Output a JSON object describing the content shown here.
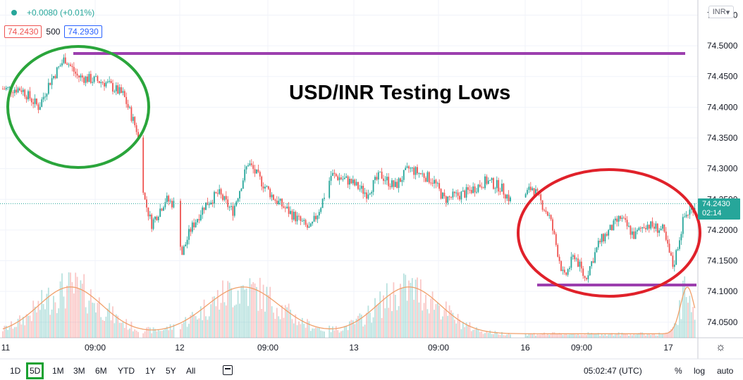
{
  "legend": {
    "change": "+0.0080 (+0.01%)"
  },
  "quote": {
    "bid": "74.2430",
    "qty": "500",
    "ask": "74.2930"
  },
  "currency": "INR",
  "title": "USD/INR Testing Lows",
  "last_price": {
    "price": "74.2430",
    "countdown": "02:14"
  },
  "ranges": [
    "1D",
    "5D",
    "1M",
    "3M",
    "6M",
    "YTD",
    "1Y",
    "5Y",
    "All"
  ],
  "active_range": "5D",
  "clock": "05:02:47 (UTC)",
  "scale_options": {
    "percent": "%",
    "log": "log",
    "auto": "auto"
  },
  "colors": {
    "up": "#26a69a",
    "down": "#ef5350",
    "resistance": "#9c3fae",
    "green_circle": "#2aa53b",
    "red_circle": "#e0212a",
    "volume_ma": "#f0a06a"
  },
  "chart_data": {
    "type": "candlestick",
    "symbol": "USD/INR",
    "ylim": [
      74.02,
      74.57
    ],
    "y_ticks": [
      "74.5500",
      "74.5000",
      "74.4500",
      "74.4000",
      "74.3500",
      "74.3000",
      "74.2500",
      "74.2000",
      "74.1500",
      "74.1000",
      "74.0500"
    ],
    "x_ticks": [
      "11",
      "09:00",
      "12",
      "09:00",
      "13",
      "09:00",
      "16",
      "09:00",
      "17"
    ],
    "price_path": [
      [
        0,
        74.43
      ],
      [
        30,
        74.43
      ],
      [
        55,
        74.4
      ],
      [
        70,
        74.44
      ],
      [
        92,
        74.48
      ],
      [
        110,
        74.45
      ],
      [
        150,
        74.44
      ],
      [
        175,
        74.42
      ],
      [
        195,
        74.36
      ],
      [
        205,
        74.25
      ],
      [
        215,
        74.21
      ],
      [
        235,
        74.25
      ],
      [
        250,
        74.24
      ],
      [
        258,
        74.16
      ],
      [
        270,
        74.2
      ],
      [
        290,
        74.24
      ],
      [
        310,
        74.26
      ],
      [
        330,
        74.23
      ],
      [
        352,
        74.31
      ],
      [
        370,
        74.28
      ],
      [
        390,
        74.25
      ],
      [
        420,
        74.22
      ],
      [
        440,
        74.2
      ],
      [
        455,
        74.24
      ],
      [
        470,
        74.29
      ],
      [
        495,
        74.28
      ],
      [
        520,
        74.26
      ],
      [
        540,
        74.29
      ],
      [
        560,
        74.27
      ],
      [
        580,
        74.3
      ],
      [
        600,
        74.29
      ],
      [
        615,
        74.28
      ],
      [
        630,
        74.25
      ],
      [
        660,
        74.26
      ],
      [
        690,
        74.28
      ],
      [
        710,
        74.27
      ],
      [
        730,
        74.24
      ],
      [
        755,
        74.27
      ],
      [
        780,
        74.22
      ],
      [
        800,
        74.12
      ],
      [
        815,
        74.16
      ],
      [
        830,
        74.12
      ],
      [
        850,
        74.18
      ],
      [
        880,
        74.22
      ],
      [
        900,
        74.19
      ],
      [
        915,
        74.21
      ],
      [
        940,
        74.2
      ],
      [
        955,
        74.14
      ],
      [
        970,
        74.22
      ],
      [
        985,
        74.24
      ]
    ],
    "resistance": 74.495,
    "support": 74.103
  }
}
